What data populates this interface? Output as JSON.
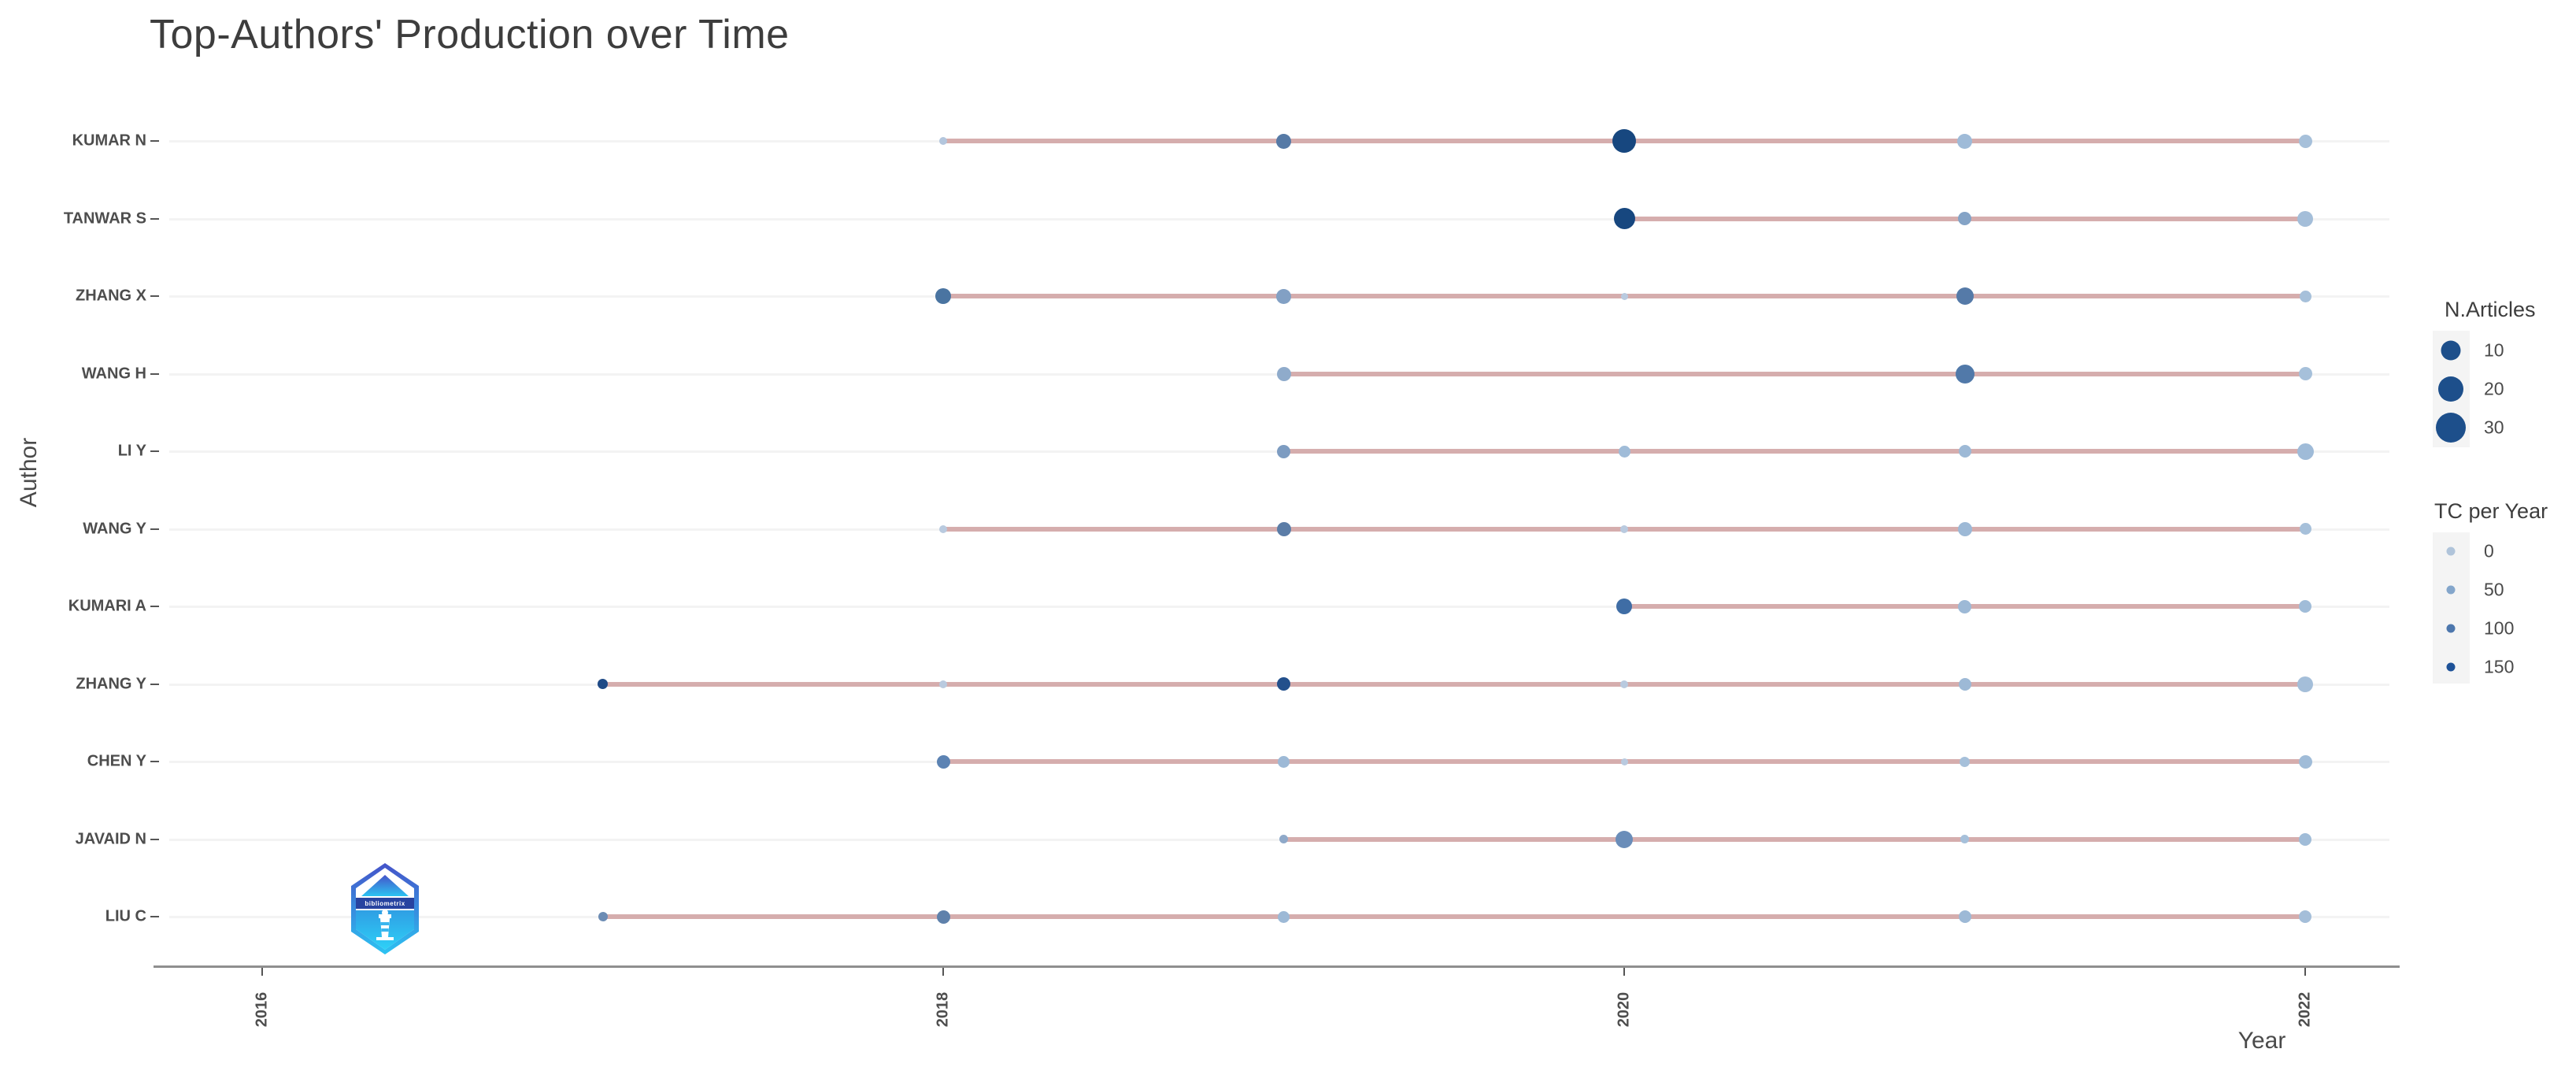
{
  "page": {
    "background": "#ffffff"
  },
  "chart_data": {
    "type": "scatter",
    "title": "Top-Authors' Production over Time",
    "xlabel": "Year",
    "ylabel": "Author",
    "x_ticks": [
      "2016",
      "2018",
      "2020",
      "2022"
    ],
    "x_range": [
      2016,
      2022
    ],
    "grid": "horizontal rows only, light gray",
    "timespan_line_color": "#cfa0a0",
    "legend_size": {
      "title": "N.Articles",
      "bubble_color": "#1d4f8b",
      "entries": [
        {
          "label": "10",
          "d": 25
        },
        {
          "label": "20",
          "d": 32
        },
        {
          "label": "30",
          "d": 38
        }
      ]
    },
    "legend_color": {
      "title": "TC per Year",
      "dot_d": 11,
      "entries": [
        {
          "label": "0",
          "color": "#b0c4da"
        },
        {
          "label": "50",
          "color": "#84a6cb"
        },
        {
          "label": "100",
          "color": "#4d77ad"
        },
        {
          "label": "150",
          "color": "#1e5298"
        }
      ]
    },
    "authors": [
      {
        "name": "KUMAR N",
        "from": 2018,
        "to": 2022,
        "points": [
          {
            "year": 2018,
            "articles": 1,
            "tc_per_year": 10,
            "d": 10,
            "color": "#b3c6dd"
          },
          {
            "year": 2019,
            "articles": 7,
            "tc_per_year": 90,
            "d": 19,
            "color": "#567aa6"
          },
          {
            "year": 2020,
            "articles": 30,
            "tc_per_year": 160,
            "d": 30,
            "color": "#17477f"
          },
          {
            "year": 2021,
            "articles": 7,
            "tc_per_year": 20,
            "d": 19,
            "color": "#9fbbd8"
          },
          {
            "year": 2022,
            "articles": 5,
            "tc_per_year": 15,
            "d": 17,
            "color": "#a6c0da"
          }
        ]
      },
      {
        "name": "TANWAR S",
        "from": 2020,
        "to": 2022,
        "points": [
          {
            "year": 2020,
            "articles": 20,
            "tc_per_year": 160,
            "d": 27,
            "color": "#17477f"
          },
          {
            "year": 2021,
            "articles": 5,
            "tc_per_year": 45,
            "d": 17,
            "color": "#84a3c6"
          },
          {
            "year": 2022,
            "articles": 8,
            "tc_per_year": 15,
            "d": 20,
            "color": "#a4bed9"
          }
        ]
      },
      {
        "name": "ZHANG X",
        "from": 2018,
        "to": 2022,
        "points": [
          {
            "year": 2018,
            "articles": 8,
            "tc_per_year": 100,
            "d": 20,
            "color": "#4a74a1"
          },
          {
            "year": 2019,
            "articles": 7,
            "tc_per_year": 45,
            "d": 19,
            "color": "#82a0c4"
          },
          {
            "year": 2020,
            "articles": 1,
            "tc_per_year": 8,
            "d": 9,
            "color": "#b9cadf"
          },
          {
            "year": 2021,
            "articles": 10,
            "tc_per_year": 90,
            "d": 22,
            "color": "#557aa8"
          },
          {
            "year": 2022,
            "articles": 3,
            "tc_per_year": 15,
            "d": 15,
            "color": "#a6c0da"
          }
        ]
      },
      {
        "name": "WANG H",
        "from": 2019,
        "to": 2022,
        "points": [
          {
            "year": 2019,
            "articles": 6,
            "tc_per_year": 35,
            "d": 18,
            "color": "#8fabcb"
          },
          {
            "year": 2021,
            "articles": 12,
            "tc_per_year": 95,
            "d": 24,
            "color": "#5179a9"
          },
          {
            "year": 2022,
            "articles": 5,
            "tc_per_year": 15,
            "d": 17,
            "color": "#a6c0da"
          }
        ]
      },
      {
        "name": "LI Y",
        "from": 2019,
        "to": 2022,
        "points": [
          {
            "year": 2019,
            "articles": 5,
            "tc_per_year": 50,
            "d": 17,
            "color": "#7d9cc1"
          },
          {
            "year": 2020,
            "articles": 3,
            "tc_per_year": 18,
            "d": 15,
            "color": "#a0bcd8"
          },
          {
            "year": 2021,
            "articles": 4,
            "tc_per_year": 20,
            "d": 16,
            "color": "#9db9d6"
          },
          {
            "year": 2022,
            "articles": 9,
            "tc_per_year": 18,
            "d": 21,
            "color": "#9fbbd8"
          }
        ]
      },
      {
        "name": "WANG Y",
        "from": 2018,
        "to": 2022,
        "points": [
          {
            "year": 2018,
            "articles": 1,
            "tc_per_year": 8,
            "d": 10,
            "color": "#b9cadf"
          },
          {
            "year": 2019,
            "articles": 6,
            "tc_per_year": 85,
            "d": 18,
            "color": "#5b7da7"
          },
          {
            "year": 2020,
            "articles": 1,
            "tc_per_year": 8,
            "d": 10,
            "color": "#b9cadf"
          },
          {
            "year": 2021,
            "articles": 6,
            "tc_per_year": 20,
            "d": 18,
            "color": "#9db9d6"
          },
          {
            "year": 2022,
            "articles": 3,
            "tc_per_year": 15,
            "d": 15,
            "color": "#a6c0da"
          }
        ]
      },
      {
        "name": "KUMARI A",
        "from": 2020,
        "to": 2022,
        "points": [
          {
            "year": 2020,
            "articles": 8,
            "tc_per_year": 110,
            "d": 20,
            "color": "#3f6da5"
          },
          {
            "year": 2021,
            "articles": 5,
            "tc_per_year": 22,
            "d": 17,
            "color": "#9db9d6"
          },
          {
            "year": 2022,
            "articles": 4,
            "tc_per_year": 18,
            "d": 16,
            "color": "#a0bcd8"
          }
        ]
      },
      {
        "name": "ZHANG Y",
        "from": 2017,
        "to": 2022,
        "points": [
          {
            "year": 2017,
            "articles": 2,
            "tc_per_year": 150,
            "d": 13,
            "color": "#1f4a86"
          },
          {
            "year": 2018,
            "articles": 1,
            "tc_per_year": 8,
            "d": 10,
            "color": "#b9cadf"
          },
          {
            "year": 2019,
            "articles": 5,
            "tc_per_year": 140,
            "d": 17,
            "color": "#23508c"
          },
          {
            "year": 2020,
            "articles": 1,
            "tc_per_year": 8,
            "d": 10,
            "color": "#b9cadf"
          },
          {
            "year": 2021,
            "articles": 4,
            "tc_per_year": 20,
            "d": 16,
            "color": "#9db9d6"
          },
          {
            "year": 2022,
            "articles": 8,
            "tc_per_year": 15,
            "d": 20,
            "color": "#a4bed9"
          }
        ]
      },
      {
        "name": "CHEN Y",
        "from": 2018,
        "to": 2022,
        "points": [
          {
            "year": 2018,
            "articles": 5,
            "tc_per_year": 80,
            "d": 17,
            "color": "#5c83b3"
          },
          {
            "year": 2019,
            "articles": 3,
            "tc_per_year": 22,
            "d": 15,
            "color": "#9db9d6"
          },
          {
            "year": 2020,
            "articles": 1,
            "tc_per_year": 8,
            "d": 9,
            "color": "#b9cadf"
          },
          {
            "year": 2021,
            "articles": 2,
            "tc_per_year": 14,
            "d": 13,
            "color": "#a6c0da"
          },
          {
            "year": 2022,
            "articles": 5,
            "tc_per_year": 18,
            "d": 17,
            "color": "#a0bcd8"
          }
        ]
      },
      {
        "name": "JAVAID N",
        "from": 2019,
        "to": 2022,
        "points": [
          {
            "year": 2019,
            "articles": 1,
            "tc_per_year": 30,
            "d": 11,
            "color": "#8fa9c9"
          },
          {
            "year": 2020,
            "articles": 10,
            "tc_per_year": 65,
            "d": 22,
            "color": "#6a8db9"
          },
          {
            "year": 2021,
            "articles": 1,
            "tc_per_year": 12,
            "d": 11,
            "color": "#a6c0da"
          },
          {
            "year": 2022,
            "articles": 4,
            "tc_per_year": 18,
            "d": 16,
            "color": "#a0bcd8"
          }
        ]
      },
      {
        "name": "LIU C",
        "from": 2017,
        "to": 2022,
        "points": [
          {
            "year": 2017,
            "articles": 2,
            "tc_per_year": 60,
            "d": 12,
            "color": "#6c8cb4"
          },
          {
            "year": 2018,
            "articles": 5,
            "tc_per_year": 75,
            "d": 17,
            "color": "#5f81ab"
          },
          {
            "year": 2019,
            "articles": 3,
            "tc_per_year": 20,
            "d": 15,
            "color": "#9db9d6"
          },
          {
            "year": 2021,
            "articles": 4,
            "tc_per_year": 20,
            "d": 16,
            "color": "#9db9d6"
          },
          {
            "year": 2022,
            "articles": 4,
            "tc_per_year": 15,
            "d": 16,
            "color": "#a4bed9"
          }
        ]
      }
    ]
  },
  "logo": {
    "band_text": "bibliometrix"
  }
}
